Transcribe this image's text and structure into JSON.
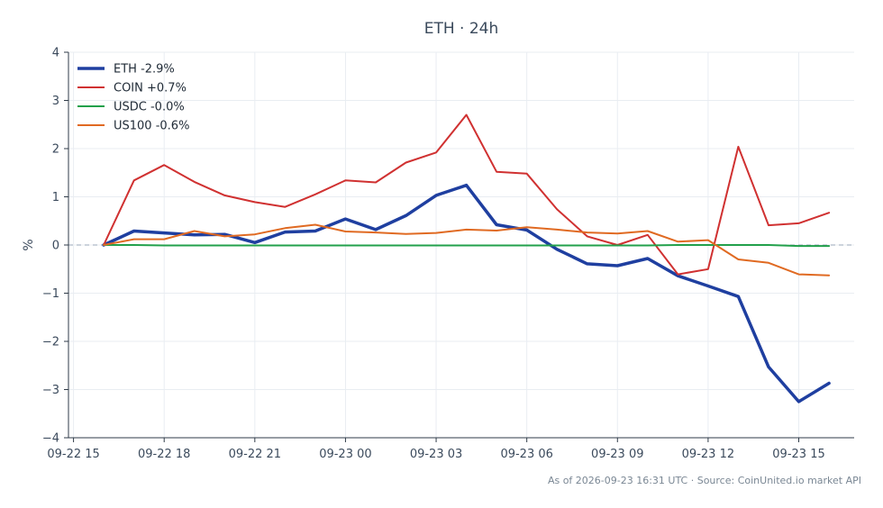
{
  "chart_data": {
    "type": "line",
    "title": "ETH · 24h",
    "ylabel": "%",
    "xlabel": "",
    "ylim": [
      -4,
      4
    ],
    "yticks": [
      4,
      3,
      2,
      1,
      0,
      -1,
      -2,
      -3,
      -4
    ],
    "ytick_labels": [
      "4",
      "3",
      "2",
      "1",
      "0",
      "−1",
      "−2",
      "−3",
      "−4"
    ],
    "xlim": [
      "2026-09-22 14:50",
      "2026-09-23 16:50"
    ],
    "xticks": [
      "2026-09-22 15:00",
      "2026-09-22 18:00",
      "2026-09-22 21:00",
      "2026-09-23 00:00",
      "2026-09-23 03:00",
      "2026-09-23 06:00",
      "2026-09-23 09:00",
      "2026-09-23 12:00",
      "2026-09-23 15:00"
    ],
    "xtick_labels": [
      "09-22 15",
      "09-22 18",
      "09-22 21",
      "09-23 00",
      "09-23 03",
      "09-23 06",
      "09-23 09",
      "09-23 12",
      "09-23 15"
    ],
    "grid": true,
    "legend": "top-left",
    "baseline": 0,
    "x": [
      "2026-09-22 16:00",
      "2026-09-22 17:00",
      "2026-09-22 18:00",
      "2026-09-22 19:00",
      "2026-09-22 20:00",
      "2026-09-22 21:00",
      "2026-09-22 22:00",
      "2026-09-22 23:00",
      "2026-09-23 00:00",
      "2026-09-23 01:00",
      "2026-09-23 02:00",
      "2026-09-23 03:00",
      "2026-09-23 04:00",
      "2026-09-23 05:00",
      "2026-09-23 06:00",
      "2026-09-23 07:00",
      "2026-09-23 08:00",
      "2026-09-23 09:00",
      "2026-09-23 10:00",
      "2026-09-23 11:00",
      "2026-09-23 12:00",
      "2026-09-23 13:00",
      "2026-09-23 14:00",
      "2026-09-23 15:00",
      "2026-09-23 16:00"
    ],
    "series": [
      {
        "name": "ETH -2.9%",
        "color": "#1f3fa0",
        "width": 3.5,
        "values": [
          0.0,
          0.29,
          0.25,
          0.21,
          0.22,
          0.05,
          0.27,
          0.29,
          0.54,
          0.32,
          0.61,
          1.03,
          1.24,
          0.42,
          0.31,
          -0.09,
          -0.39,
          -0.43,
          -0.28,
          -0.64,
          -0.85,
          -1.07,
          -2.53,
          -3.25,
          -2.87
        ]
      },
      {
        "name": "COIN +0.7%",
        "color": "#d03131",
        "width": 2,
        "values": [
          0.0,
          1.34,
          1.66,
          1.31,
          1.03,
          0.89,
          0.79,
          1.05,
          1.34,
          1.3,
          1.71,
          1.92,
          2.7,
          1.52,
          1.48,
          0.74,
          0.18,
          0.0,
          0.21,
          -0.61,
          -0.5,
          2.04,
          0.41,
          0.45,
          0.67
        ]
      },
      {
        "name": "USDC -0.0%",
        "color": "#22a04b",
        "width": 2,
        "values": [
          0.0,
          0.0,
          -0.01,
          -0.01,
          -0.01,
          -0.01,
          -0.01,
          -0.01,
          -0.01,
          -0.01,
          -0.01,
          -0.01,
          -0.01,
          -0.01,
          -0.01,
          -0.01,
          -0.01,
          -0.01,
          -0.01,
          0.0,
          0.0,
          0.0,
          0.0,
          -0.02,
          -0.02
        ]
      },
      {
        "name": "US100 -0.6%",
        "color": "#e06a22",
        "width": 2,
        "values": [
          0.0,
          0.12,
          0.12,
          0.29,
          0.18,
          0.22,
          0.35,
          0.42,
          0.28,
          0.26,
          0.23,
          0.25,
          0.32,
          0.3,
          0.37,
          0.32,
          0.26,
          0.24,
          0.29,
          0.07,
          0.1,
          -0.3,
          -0.37,
          -0.61,
          -0.63
        ]
      }
    ]
  },
  "footer": "As of 2026-09-23 16:31 UTC · Source: CoinUnited.io market API"
}
